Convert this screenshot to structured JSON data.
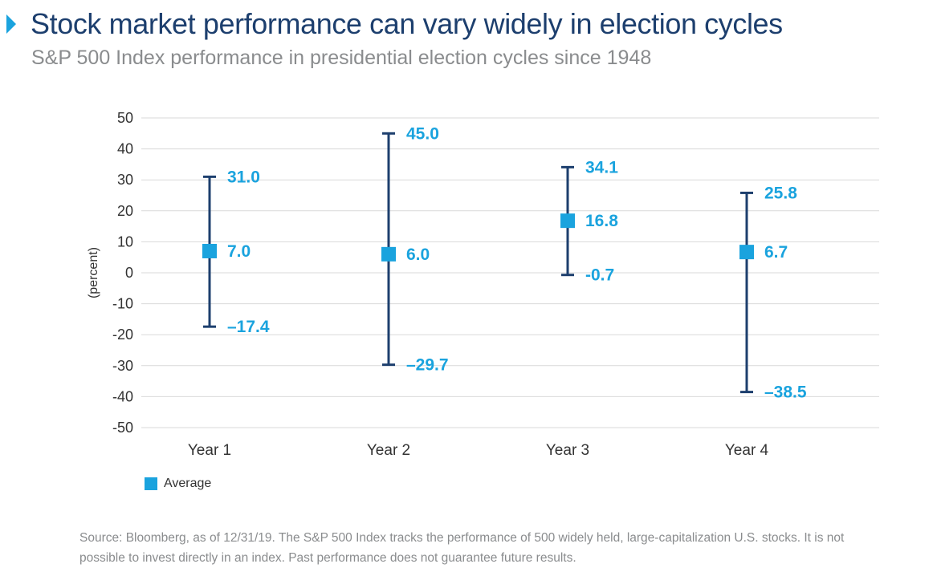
{
  "header": {
    "title": "Stock market performance can vary widely in election cycles",
    "subtitle": "S&P 500 Index performance in presidential election cycles since 1948"
  },
  "colors": {
    "title": "#1d3f6e",
    "range_line": "#1d3f6e",
    "average_marker": "#1aa3de",
    "value_labels": "#1aa3de",
    "gridlines": "#d9d9d9",
    "muted_text": "#8a8c8e"
  },
  "chart_data": {
    "type": "range",
    "ylabel": "(percent)",
    "ylim": [
      -50,
      50
    ],
    "yticks": [
      50,
      40,
      30,
      20,
      10,
      0,
      -10,
      -20,
      -30,
      -40,
      -50
    ],
    "grid": true,
    "categories": [
      "Year 1",
      "Year 2",
      "Year 3",
      "Year 4"
    ],
    "series": [
      {
        "name": "Average",
        "high": [
          31.0,
          45.0,
          34.1,
          25.8
        ],
        "average": [
          7.0,
          6.0,
          16.8,
          6.7
        ],
        "low": [
          -17.4,
          -29.7,
          -0.7,
          -38.5
        ],
        "high_labels": [
          "31.0",
          "45.0",
          "34.1",
          "25.8"
        ],
        "average_labels": [
          "7.0",
          "6.0",
          "16.8",
          "6.7"
        ],
        "low_labels": [
          "–17.4",
          "–29.7",
          "-0.7",
          "–38.5"
        ]
      }
    ],
    "legend": {
      "position": "bottom-left",
      "label": "Average"
    }
  },
  "footer": {
    "source": "Source: Bloomberg, as of 12/31/19. The S&P 500 Index tracks the performance of 500 widely held, large-capitalization U.S. stocks. It is not possible to invest directly in an index. Past performance does not guarantee future results."
  }
}
